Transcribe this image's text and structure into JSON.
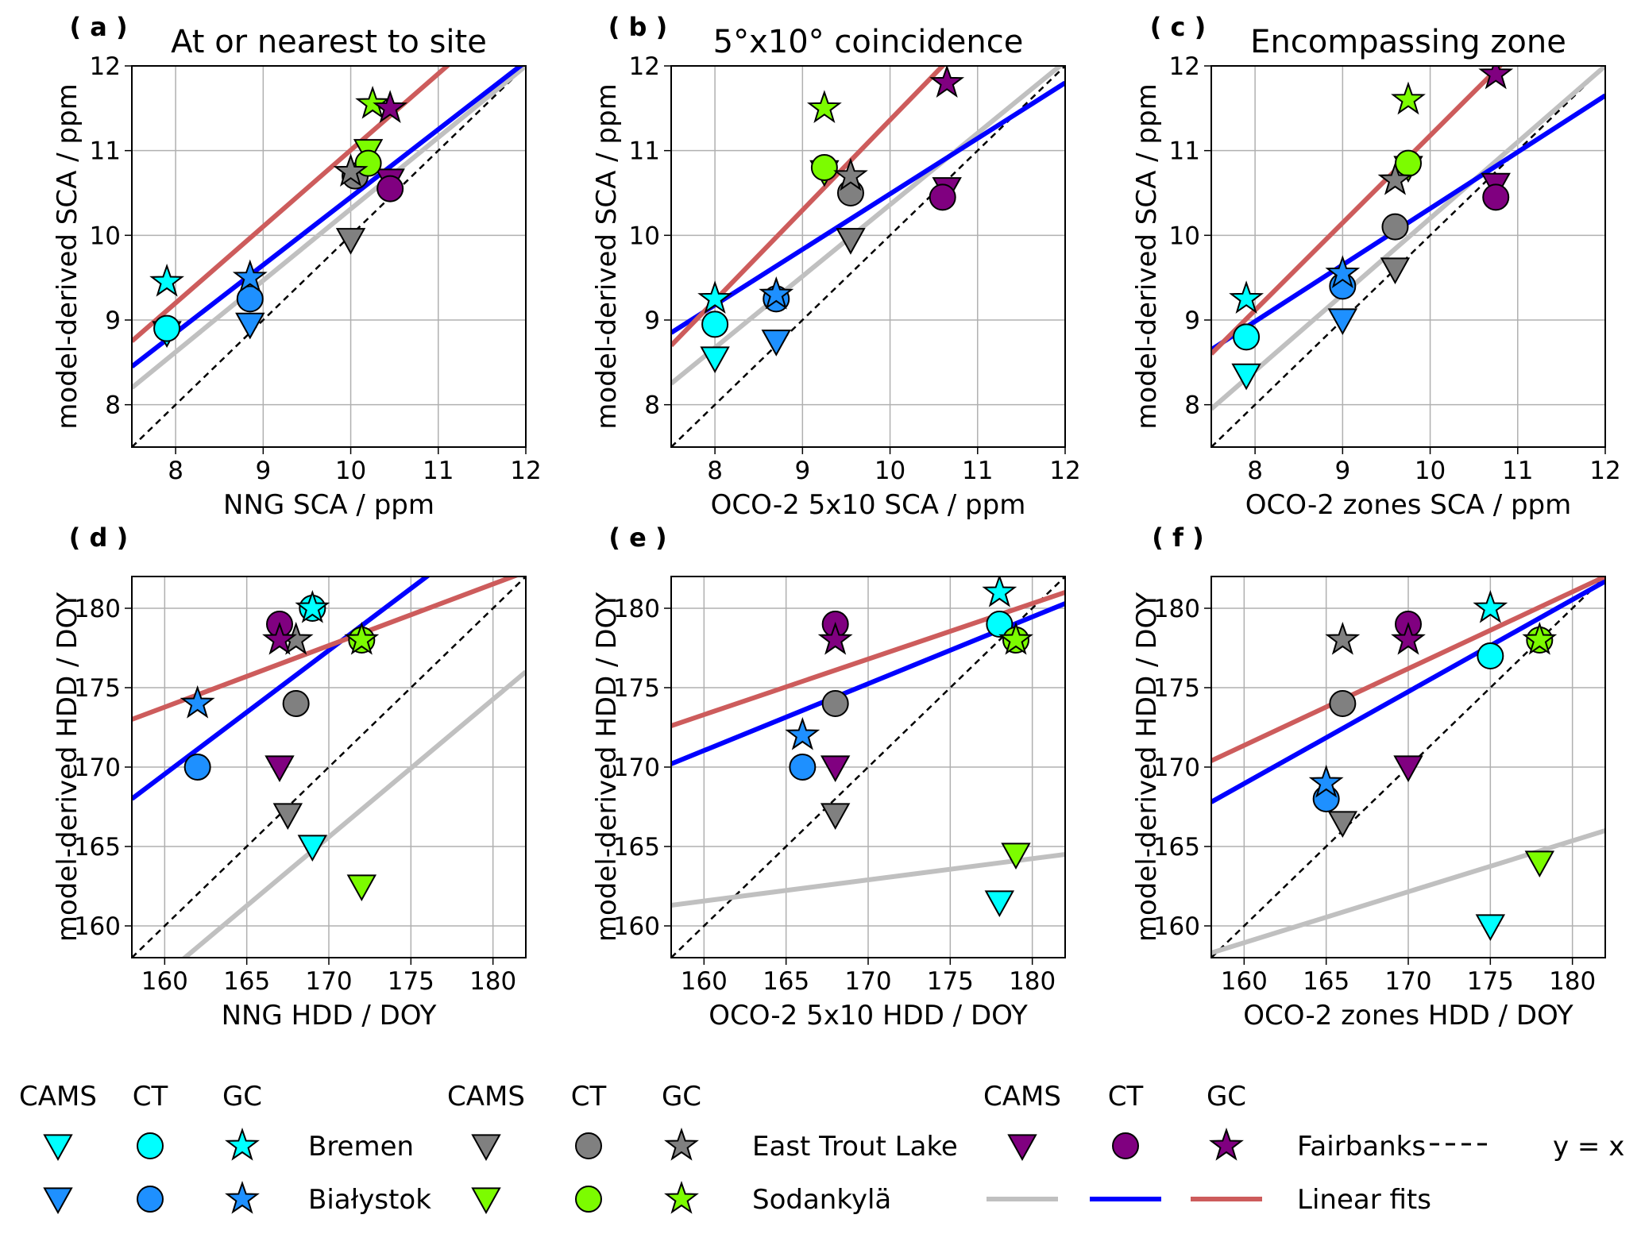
{
  "chart_data": [
    {
      "type": "scatter",
      "label": "( a )",
      "title": "At or nearest to site",
      "xlabel": "NNG SCA / ppm",
      "ylabel": "model-derived SCA / ppm",
      "xlim": [
        7.5,
        12
      ],
      "ylim": [
        7.5,
        12
      ],
      "xticks": [
        8,
        9,
        10,
        11,
        12
      ],
      "yticks": [
        8,
        9,
        10,
        11,
        12
      ],
      "grid": true,
      "series": [
        {
          "x": [
            7.9,
            8.85,
            10.0,
            10.2,
            10.45
          ],
          "y": [
            8.85,
            8.95,
            9.95,
            11.0,
            10.65
          ]
        },
        {
          "x": [
            7.9,
            8.85,
            10.05,
            10.2,
            10.45
          ],
          "y": [
            8.9,
            9.25,
            10.7,
            10.85,
            10.55
          ]
        },
        {
          "x": [
            7.9,
            8.85,
            10.0,
            10.25,
            10.45
          ],
          "y": [
            9.45,
            9.5,
            10.75,
            11.55,
            11.5
          ]
        }
      ],
      "fits": [
        {
          "x": [
            7.5,
            12
          ],
          "y": [
            8.2,
            12.0
          ]
        },
        {
          "x": [
            7.5,
            12
          ],
          "y": [
            8.45,
            12.05
          ]
        },
        {
          "x": [
            7.5,
            12
          ],
          "y": [
            8.75,
            12.81
          ]
        }
      ],
      "identity": {
        "x": [
          7.5,
          12
        ],
        "y": [
          7.5,
          12
        ]
      }
    },
    {
      "type": "scatter",
      "label": "( b )",
      "title": "5°x10° coincidence",
      "xlabel": "OCO-2 5x10 SCA / ppm",
      "ylabel": "model-derived SCA / ppm",
      "xlim": [
        7.5,
        12
      ],
      "ylim": [
        7.5,
        12
      ],
      "xticks": [
        8,
        9,
        10,
        11,
        12
      ],
      "yticks": [
        8,
        9,
        10,
        11,
        12
      ],
      "grid": true,
      "series": [
        {
          "x": [
            8.0,
            8.7,
            9.55,
            9.25,
            10.65
          ],
          "y": [
            8.55,
            8.75,
            9.95,
            10.75,
            10.55
          ]
        },
        {
          "x": [
            8.0,
            8.7,
            9.55,
            9.25,
            10.6
          ],
          "y": [
            8.95,
            9.25,
            10.5,
            10.8,
            10.45
          ]
        },
        {
          "x": [
            8.0,
            8.7,
            9.55,
            9.25,
            10.65
          ],
          "y": [
            9.25,
            9.3,
            10.7,
            11.5,
            11.8
          ]
        }
      ],
      "fits": [
        {
          "x": [
            7.5,
            12
          ],
          "y": [
            8.25,
            12.05
          ]
        },
        {
          "x": [
            7.5,
            12
          ],
          "y": [
            8.85,
            11.8
          ]
        },
        {
          "x": [
            7.5,
            12
          ],
          "y": [
            8.7,
            13.49
          ]
        }
      ],
      "identity": {
        "x": [
          7.5,
          12
        ],
        "y": [
          7.5,
          12
        ]
      }
    },
    {
      "type": "scatter",
      "label": "( c )",
      "title": "Encompassing zone",
      "xlabel": "OCO-2 zones SCA / ppm",
      "ylabel": "model-derived SCA / ppm",
      "xlim": [
        7.5,
        12
      ],
      "ylim": [
        7.5,
        12
      ],
      "xticks": [
        8,
        9,
        10,
        11,
        12
      ],
      "yticks": [
        8,
        9,
        10,
        11,
        12
      ],
      "grid": true,
      "series": [
        {
          "x": [
            7.9,
            9.0,
            9.6,
            9.75,
            10.75
          ],
          "y": [
            8.35,
            9.0,
            9.6,
            10.8,
            10.6
          ]
        },
        {
          "x": [
            7.9,
            9.0,
            9.6,
            9.75,
            10.75
          ],
          "y": [
            8.8,
            9.4,
            10.1,
            10.85,
            10.45
          ]
        },
        {
          "x": [
            7.9,
            9.0,
            9.6,
            9.75,
            10.75
          ],
          "y": [
            9.25,
            9.55,
            10.65,
            11.6,
            11.9
          ]
        }
      ],
      "fits": [
        {
          "x": [
            7.5,
            12
          ],
          "y": [
            7.95,
            12.0
          ]
        },
        {
          "x": [
            7.5,
            12
          ],
          "y": [
            8.65,
            11.65
          ]
        },
        {
          "x": [
            7.5,
            12
          ],
          "y": [
            8.6,
            13.24
          ]
        }
      ],
      "identity": {
        "x": [
          7.5,
          12
        ],
        "y": [
          7.5,
          12
        ]
      }
    },
    {
      "type": "scatter",
      "label": "( d )",
      "xlabel": "NNG HDD / DOY",
      "ylabel": "model-derived HDD / DOY",
      "xlim": [
        158,
        182
      ],
      "ylim": [
        158,
        182
      ],
      "xticks": [
        160,
        165,
        170,
        175,
        180
      ],
      "yticks": [
        160,
        165,
        170,
        175,
        180
      ],
      "grid": true,
      "series": [
        {
          "x": [
            169,
            null,
            167.5,
            172,
            167
          ],
          "y": [
            165,
            null,
            167,
            162.5,
            170
          ]
        },
        {
          "x": [
            169,
            162,
            168,
            172,
            167
          ],
          "y": [
            180,
            170,
            174,
            178,
            179
          ]
        },
        {
          "x": [
            169,
            162,
            168,
            172,
            167
          ],
          "y": [
            180,
            174,
            178,
            178,
            178
          ]
        }
      ],
      "fits": [
        {
          "x": [
            158,
            182
          ],
          "y": [
            155.2,
            176
          ]
        },
        {
          "x": [
            158,
            182
          ],
          "y": [
            168,
            186.7
          ]
        },
        {
          "x": [
            158,
            182
          ],
          "y": [
            173,
            182.3
          ]
        }
      ],
      "identity": {
        "x": [
          158,
          182
        ],
        "y": [
          158,
          182
        ]
      }
    },
    {
      "type": "scatter",
      "label": "( e )",
      "xlabel": "OCO-2 5x10 HDD / DOY",
      "ylabel": "model-derived HDD / DOY",
      "xlim": [
        158,
        182
      ],
      "ylim": [
        158,
        182
      ],
      "xticks": [
        160,
        165,
        170,
        175,
        180
      ],
      "yticks": [
        160,
        165,
        170,
        175,
        180
      ],
      "grid": true,
      "series": [
        {
          "x": [
            178,
            null,
            168,
            179,
            168
          ],
          "y": [
            161.5,
            null,
            167,
            164.5,
            170
          ]
        },
        {
          "x": [
            178,
            166,
            168,
            179,
            168
          ],
          "y": [
            179,
            170,
            174,
            178,
            179
          ]
        },
        {
          "x": [
            178,
            166,
            null,
            179,
            168
          ],
          "y": [
            181,
            172,
            null,
            178,
            178
          ]
        }
      ],
      "fits": [
        {
          "x": [
            158,
            182
          ],
          "y": [
            161.3,
            164.5
          ]
        },
        {
          "x": [
            158,
            182
          ],
          "y": [
            170.2,
            180.3
          ]
        },
        {
          "x": [
            158,
            182
          ],
          "y": [
            172.6,
            181
          ]
        }
      ],
      "identity": {
        "x": [
          158,
          182
        ],
        "y": [
          158,
          182
        ]
      }
    },
    {
      "type": "scatter",
      "label": "( f )",
      "xlabel": "OCO-2 zones HDD / DOY",
      "ylabel": "model-derived HDD / DOY",
      "xlim": [
        158,
        182
      ],
      "ylim": [
        158,
        182
      ],
      "xticks": [
        160,
        165,
        170,
        175,
        180
      ],
      "yticks": [
        160,
        165,
        170,
        175,
        180
      ],
      "grid": true,
      "series": [
        {
          "x": [
            175,
            null,
            166,
            178,
            170
          ],
          "y": [
            160,
            null,
            166.5,
            164,
            170
          ]
        },
        {
          "x": [
            175,
            165,
            166,
            178,
            170
          ],
          "y": [
            177,
            168,
            174,
            178,
            179
          ]
        },
        {
          "x": [
            175,
            165,
            166,
            178,
            170
          ],
          "y": [
            180,
            169,
            178,
            178,
            178
          ]
        }
      ],
      "fits": [
        {
          "x": [
            158,
            182
          ],
          "y": [
            158.3,
            166
          ]
        },
        {
          "x": [
            158,
            182
          ],
          "y": [
            167.8,
            181.7
          ]
        },
        {
          "x": [
            158,
            182
          ],
          "y": [
            170.4,
            182
          ]
        }
      ],
      "identity": {
        "x": [
          158,
          182
        ],
        "y": [
          158,
          182
        ]
      }
    }
  ],
  "legend": {
    "models": [
      {
        "name": "CAMS",
        "marker": "triangle-down",
        "fit_color": "#c0c0c0"
      },
      {
        "name": "CT",
        "marker": "circle",
        "fit_color": "#0000ff"
      },
      {
        "name": "GC",
        "marker": "star",
        "fit_color": "#cd5c5c"
      }
    ],
    "sites": [
      {
        "name": "Bremen",
        "color": "#00ffff"
      },
      {
        "name": "Białystok",
        "color": "#1e90ff"
      },
      {
        "name": "East Trout Lake",
        "color": "#808080"
      },
      {
        "name": "Sodankylä",
        "color": "#7cfc00"
      },
      {
        "name": "Fairbanks",
        "color": "#800080"
      }
    ],
    "identity_label": "y = x",
    "fits_label": "Linear fits"
  }
}
